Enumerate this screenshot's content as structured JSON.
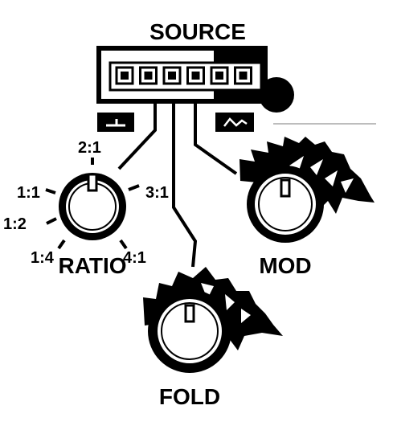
{
  "source": {
    "label": "SOURCE",
    "cell_count": 6,
    "icons": {
      "left": "step-wave-icon",
      "right": "sine-wave-icon"
    }
  },
  "ratio": {
    "label": "RATIO",
    "ticks": [
      "1:4",
      "1:2",
      "1:1",
      "2:1",
      "3:1",
      "4:1"
    ]
  },
  "mod": {
    "label": "MOD"
  },
  "fold": {
    "label": "FOLD"
  },
  "colors": {
    "ink": "#000000",
    "paper": "#ffffff",
    "guide": "#bdbdbd"
  }
}
